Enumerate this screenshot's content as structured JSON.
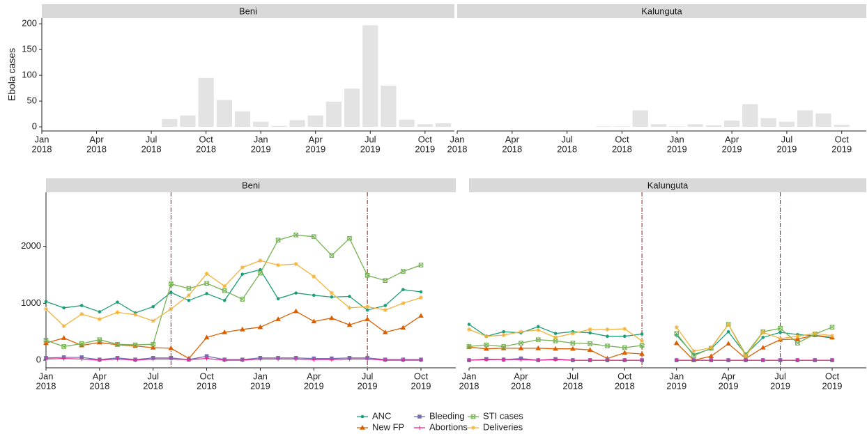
{
  "chart_data": [
    {
      "type": "bar",
      "title": "Beni",
      "y_label": "Ebola cases",
      "color": "#e3e3e3",
      "x": [
        "2018-08",
        "2018-09",
        "2018-10",
        "2018-11",
        "2018-12",
        "2019-01",
        "2019-02",
        "2019-03",
        "2019-04",
        "2019-05",
        "2019-06",
        "2019-07",
        "2019-08",
        "2019-09",
        "2019-10",
        "2019-11"
      ],
      "values": [
        15,
        22,
        95,
        52,
        30,
        10,
        2,
        13,
        22,
        49,
        74,
        197,
        80,
        14,
        5,
        7
      ],
      "xlim": [
        "2018-01",
        "2019-11"
      ],
      "xticks": [
        {
          "value": "2018-01",
          "label": [
            "Jan",
            "2018"
          ]
        },
        {
          "value": "2018-04",
          "label": [
            "Apr",
            "2018"
          ]
        },
        {
          "value": "2018-07",
          "label": [
            "Jul",
            "2018"
          ]
        },
        {
          "value": "2018-10",
          "label": [
            "Oct",
            "2018"
          ]
        },
        {
          "value": "2019-01",
          "label": [
            "Jan",
            "2019"
          ]
        },
        {
          "value": "2019-04",
          "label": [
            "Apr",
            "2019"
          ]
        },
        {
          "value": "2019-07",
          "label": [
            "Jul",
            "2019"
          ]
        },
        {
          "value": "2019-10",
          "label": [
            "Oct",
            "2019"
          ]
        }
      ],
      "ylim": [
        -8,
        211
      ],
      "yticks": [
        0,
        50,
        100,
        150,
        200
      ]
    },
    {
      "type": "bar",
      "title": "Kalunguta",
      "color": "#e3e3e3",
      "x": [
        "2018-09",
        "2018-10",
        "2018-11",
        "2018-12",
        "2019-01",
        "2019-02",
        "2019-03",
        "2019-04",
        "2019-05",
        "2019-06",
        "2019-07",
        "2019-08",
        "2019-09",
        "2019-10"
      ],
      "values": [
        1,
        1,
        32,
        5,
        1,
        5,
        3,
        12,
        44,
        17,
        10,
        32,
        26,
        4
      ],
      "xlim": [
        "2018-01",
        "2019-11"
      ],
      "xticks": [
        {
          "value": "2018-01",
          "label": [
            "Jan",
            "2018"
          ]
        },
        {
          "value": "2018-04",
          "label": [
            "Apr",
            "2018"
          ]
        },
        {
          "value": "2018-07",
          "label": [
            "Jul",
            "2018"
          ]
        },
        {
          "value": "2018-10",
          "label": [
            "Oct",
            "2018"
          ]
        },
        {
          "value": "2019-01",
          "label": [
            "Jan",
            "2019"
          ]
        },
        {
          "value": "2019-04",
          "label": [
            "Apr",
            "2019"
          ]
        },
        {
          "value": "2019-07",
          "label": [
            "Jul",
            "2019"
          ]
        },
        {
          "value": "2019-10",
          "label": [
            "Oct",
            "2019"
          ]
        }
      ],
      "ylim": [
        -8,
        211
      ]
    },
    {
      "type": "line",
      "title": "Beni",
      "vlines": [
        "2018-08",
        "2019-07"
      ],
      "vline_color": "#8b1a1a",
      "x": [
        "2018-01",
        "2018-02",
        "2018-03",
        "2018-04",
        "2018-05",
        "2018-06",
        "2018-07",
        "2018-08",
        "2018-09",
        "2018-10",
        "2018-11",
        "2018-12",
        "2019-01",
        "2019-02",
        "2019-03",
        "2019-04",
        "2019-05",
        "2019-06",
        "2019-07",
        "2019-08",
        "2019-09",
        "2019-10"
      ],
      "series": [
        {
          "name": "ANC",
          "color": "#1b9e77",
          "marker": "circle",
          "values": [
            1030,
            920,
            960,
            850,
            1020,
            830,
            940,
            1190,
            1050,
            1170,
            1050,
            1510,
            1590,
            1080,
            1180,
            1140,
            1110,
            1120,
            880,
            960,
            1240,
            1200
          ]
        },
        {
          "name": "New FP",
          "color": "#d95f02",
          "marker": "triangle",
          "values": [
            300,
            390,
            260,
            310,
            270,
            250,
            220,
            210,
            30,
            400,
            490,
            540,
            580,
            720,
            860,
            680,
            740,
            620,
            720,
            490,
            570,
            780
          ]
        },
        {
          "name": "Bleeding",
          "color": "#7570b3",
          "marker": "square",
          "values": [
            40,
            50,
            50,
            10,
            40,
            10,
            40,
            40,
            10,
            70,
            10,
            10,
            40,
            40,
            40,
            30,
            30,
            40,
            40,
            10,
            10,
            10
          ]
        },
        {
          "name": "Abortions",
          "color": "#e7298a",
          "marker": "plus",
          "values": [
            20,
            30,
            20,
            0,
            20,
            0,
            20,
            20,
            10,
            30,
            0,
            0,
            20,
            20,
            20,
            10,
            10,
            20,
            20,
            0,
            0,
            0
          ]
        },
        {
          "name": "STI cases",
          "color": "#74b253",
          "marker": "square-cross",
          "values": [
            350,
            240,
            290,
            360,
            280,
            270,
            280,
            1340,
            1260,
            1350,
            1220,
            1070,
            1530,
            2110,
            2200,
            2170,
            1840,
            2140,
            1490,
            1400,
            1560,
            1670
          ]
        },
        {
          "name": "Deliveries",
          "color": "#f2b23a",
          "marker": "star",
          "values": [
            900,
            600,
            810,
            720,
            840,
            800,
            690,
            900,
            1140,
            1520,
            1300,
            1630,
            1750,
            1670,
            1690,
            1470,
            1180,
            920,
            940,
            880,
            1000,
            1100
          ]
        }
      ],
      "xlim": [
        "2018-01",
        "2019-10"
      ],
      "xticks": [
        {
          "value": "2018-01",
          "label": [
            "Jan",
            "2018"
          ]
        },
        {
          "value": "2018-04",
          "label": [
            "Apr",
            "2018"
          ]
        },
        {
          "value": "2018-07",
          "label": [
            "Jul",
            "2018"
          ]
        },
        {
          "value": "2018-10",
          "label": [
            "Oct",
            "2018"
          ]
        },
        {
          "value": "2019-01",
          "label": [
            "Jan",
            "2019"
          ]
        },
        {
          "value": "2019-04",
          "label": [
            "Apr",
            "2019"
          ]
        },
        {
          "value": "2019-07",
          "label": [
            "Jul",
            "2019"
          ]
        },
        {
          "value": "2019-10",
          "label": [
            "Oct",
            "2019"
          ]
        }
      ],
      "ylim": [
        -134,
        2950
      ],
      "yticks": [
        0,
        1000,
        2000
      ]
    },
    {
      "type": "line",
      "title": "Kalunguta",
      "vlines": [
        "2018-11",
        "2019-07"
      ],
      "vline_color": "#8b1a1a",
      "x": [
        "2018-01",
        "2018-02",
        "2018-03",
        "2018-04",
        "2018-05",
        "2018-06",
        "2018-07",
        "2018-08",
        "2018-09",
        "2018-10",
        "2018-11",
        "2018-12",
        "2019-01",
        "2019-02",
        "2019-03",
        "2019-04",
        "2019-05",
        "2019-06",
        "2019-07",
        "2019-08",
        "2019-09",
        "2019-10"
      ],
      "series": [
        {
          "name": "ANC",
          "color": "#1b9e77",
          "marker": "circle",
          "values": [
            630,
            420,
            500,
            480,
            590,
            470,
            500,
            480,
            420,
            420,
            460,
            null,
            440,
            100,
            200,
            500,
            100,
            400,
            490,
            450,
            430,
            390
          ]
        },
        {
          "name": "New FP",
          "color": "#d95f02",
          "marker": "triangle",
          "values": [
            230,
            200,
            210,
            210,
            210,
            200,
            200,
            180,
            30,
            130,
            110,
            null,
            300,
            0,
            70,
            290,
            30,
            220,
            360,
            370,
            440,
            400
          ]
        },
        {
          "name": "Bleeding",
          "color": "#7570b3",
          "marker": "square",
          "values": [
            0,
            20,
            10,
            30,
            0,
            20,
            0,
            0,
            0,
            0,
            0,
            null,
            0,
            0,
            0,
            0,
            0,
            0,
            0,
            0,
            0,
            0
          ]
        },
        {
          "name": "Abortions",
          "color": "#e7298a",
          "marker": "plus",
          "values": [
            0,
            10,
            10,
            10,
            0,
            10,
            0,
            0,
            0,
            0,
            0,
            null,
            0,
            0,
            0,
            0,
            0,
            0,
            0,
            0,
            0,
            0
          ]
        },
        {
          "name": "STI cases",
          "color": "#74b253",
          "marker": "square-cross",
          "values": [
            240,
            270,
            240,
            300,
            360,
            340,
            300,
            290,
            250,
            220,
            260,
            null,
            470,
            80,
            210,
            630,
            100,
            500,
            560,
            300,
            460,
            580
          ]
        },
        {
          "name": "Deliveries",
          "color": "#f2b23a",
          "marker": "star",
          "values": [
            540,
            420,
            440,
            500,
            530,
            400,
            470,
            540,
            540,
            550,
            340,
            null,
            580,
            160,
            220,
            630,
            70,
            490,
            380,
            420,
            470,
            430
          ]
        }
      ],
      "xlim": [
        "2018-01",
        "2019-10"
      ],
      "xticks": [
        {
          "value": "2018-01",
          "label": [
            "Jan",
            "2018"
          ]
        },
        {
          "value": "2018-04",
          "label": [
            "Apr",
            "2018"
          ]
        },
        {
          "value": "2018-07",
          "label": [
            "Jul",
            "2018"
          ]
        },
        {
          "value": "2018-10",
          "label": [
            "Oct",
            "2018"
          ]
        },
        {
          "value": "2019-01",
          "label": [
            "Jan",
            "2019"
          ]
        },
        {
          "value": "2019-04",
          "label": [
            "Apr",
            "2019"
          ]
        },
        {
          "value": "2019-07",
          "label": [
            "Jul",
            "2019"
          ]
        },
        {
          "value": "2019-10",
          "label": [
            "Oct",
            "2019"
          ]
        }
      ],
      "ylim": [
        -134,
        2950
      ]
    }
  ]
}
